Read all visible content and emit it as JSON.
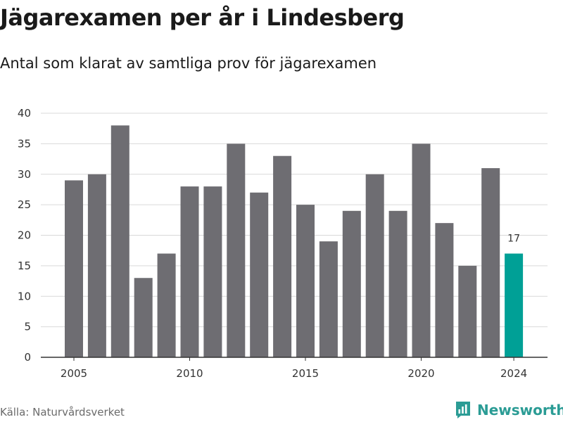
{
  "header": {
    "title": "Jägarexamen per år i Lindesberg",
    "subtitle": "Antal som klarat av samtliga prov för jägarexamen"
  },
  "footer": {
    "source": "Källa: Naturvårdsverket",
    "brand": "Newsworthy",
    "brand_icon": "newsworthy-logo-icon"
  },
  "colors": {
    "bar": "#6e6d72",
    "highlight": "#00a096",
    "grid": "#d9d9d9",
    "axis": "#333333",
    "brand": "#2b9c95"
  },
  "chart_data": {
    "type": "bar",
    "categories": [
      "2005",
      "2006",
      "2007",
      "2008",
      "2009",
      "2010",
      "2011",
      "2012",
      "2013",
      "2014",
      "2015",
      "2016",
      "2017",
      "2018",
      "2019",
      "2020",
      "2021",
      "2022",
      "2023",
      "2024"
    ],
    "values": [
      29,
      30,
      38,
      13,
      17,
      28,
      28,
      35,
      27,
      33,
      25,
      19,
      24,
      30,
      24,
      35,
      22,
      15,
      31,
      17
    ],
    "highlight_category": "2024",
    "data_labels": [
      {
        "category": "2024",
        "text": "17"
      }
    ],
    "x_tick_labels": [
      "2005",
      "2010",
      "2015",
      "2020",
      "2024"
    ],
    "y_ticks": [
      0,
      5,
      10,
      15,
      20,
      25,
      30,
      35,
      40
    ],
    "ylim": [
      0,
      40
    ],
    "xlabel": "",
    "ylabel": "",
    "grid": "horizontal"
  }
}
